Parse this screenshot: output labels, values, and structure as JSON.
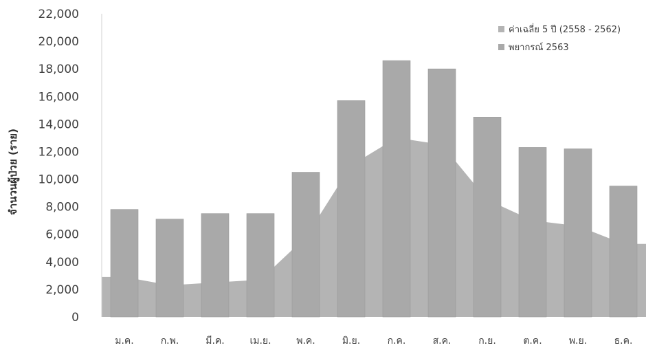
{
  "chart_data": {
    "type": "bar",
    "categories": [
      "ม.ค.",
      "ก.พ.",
      "มี.ค.",
      "เม.ย.",
      "พ.ค.",
      "มิ.ย.",
      "ก.ค.",
      "ส.ค.",
      "ก.ย.",
      "ต.ค.",
      "พ.ย.",
      "ธ.ค."
    ],
    "series": [
      {
        "name": "ค่าเฉลี่ย 5 ปี (2558 - 2562)",
        "render": "area",
        "color": "#b4b4b4",
        "values": [
          2900,
          2300,
          2500,
          2700,
          5800,
          11000,
          13000,
          12500,
          8500,
          7000,
          6600,
          5300
        ]
      },
      {
        "name": "พยากรณ์ 2563",
        "render": "bar",
        "color": "#a9a9a9",
        "values": [
          7800,
          7100,
          7500,
          7500,
          10500,
          15700,
          18600,
          18000,
          14500,
          12300,
          12200,
          9500
        ]
      }
    ],
    "title": "",
    "xlabel": "",
    "ylabel": "จำนวนผู้ป่วย (ราย)",
    "ylim": [
      0,
      22000
    ],
    "yticks": [
      0,
      2000,
      4000,
      6000,
      8000,
      10000,
      12000,
      14000,
      16000,
      18000,
      20000,
      22000
    ],
    "ytick_labels": [
      "0",
      "2,000",
      "4,000",
      "6,000",
      "8,000",
      "10,000",
      "12,000",
      "14,000",
      "16,000",
      "18,000",
      "20,000",
      "22,000"
    ],
    "grid": false,
    "legend": "top-right"
  }
}
